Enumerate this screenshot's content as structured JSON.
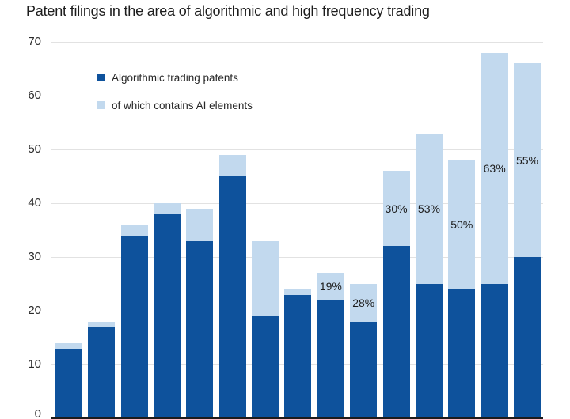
{
  "chart_data": {
    "type": "bar",
    "stacked": true,
    "title": "Patent filings in the area of algorithmic and high frequency trading",
    "legend": [
      {
        "name": "Algorithmic trading patents",
        "color": "#0e529c"
      },
      {
        "name": "of which contains AI elements",
        "color": "#c2d9ee"
      }
    ],
    "legend_position": "top-left-inside",
    "grid": "horizontal",
    "bar_count": 15,
    "x_axis": {
      "tick_labels_visible": false
    },
    "y_axis": {
      "min": 0,
      "max": 70,
      "tick_step": 10,
      "ticks": [
        70,
        60,
        50,
        40,
        30,
        20,
        10,
        0
      ]
    },
    "series": [
      {
        "name": "Algorithmic trading patents",
        "role": "bottom-segment",
        "color": "#0e529c",
        "values": [
          13,
          17,
          34,
          38,
          33,
          45,
          19,
          23,
          22,
          18,
          32,
          25,
          24,
          25,
          30
        ]
      },
      {
        "name": "of which contains AI elements",
        "role": "top-segment",
        "color": "#c2d9ee",
        "values": [
          1,
          1,
          2,
          2,
          6,
          4,
          14,
          1,
          5,
          7,
          14,
          28,
          24,
          43,
          36
        ]
      }
    ],
    "stack_totals": [
      14,
      18,
      36,
      40,
      39,
      49,
      33,
      24,
      27,
      25,
      46,
      53,
      48,
      68,
      66
    ],
    "bar_labels": [
      "",
      "",
      "",
      "",
      "",
      "",
      "",
      "",
      "19%",
      "28%",
      "30%",
      "53%",
      "50%",
      "63%",
      "55%"
    ]
  },
  "colors": {
    "dark_blue": "#0e529c",
    "light_blue": "#c2d9ee",
    "gridline": "#e2e2e2",
    "axis_line": "#1c1c1c",
    "title_text": "#1d1d1d",
    "tick_text": "#2a2a2a",
    "label_text": "#1c1c1c",
    "background": "#ffffff"
  }
}
